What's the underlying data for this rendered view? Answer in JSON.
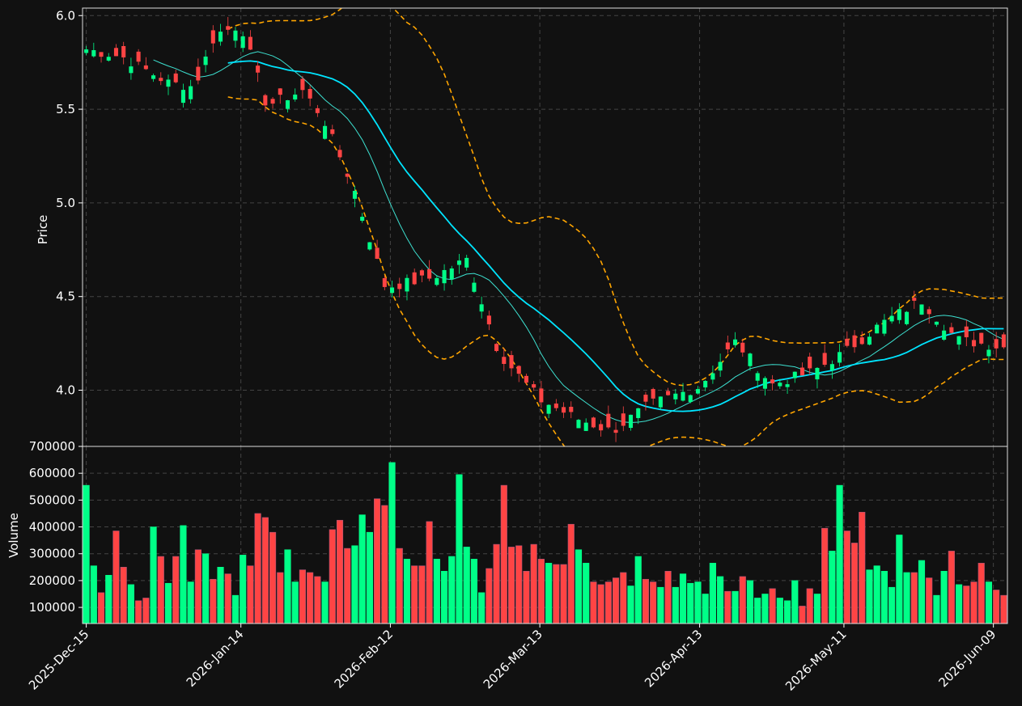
{
  "theme": {
    "background": "#111111",
    "up": "#00ff88",
    "down": "#ff4444",
    "sma_long": "#00e5ff",
    "sma_short": "#3de0d0",
    "bands": "#ffa500",
    "grid": "#444444"
  },
  "chart_data": [
    {
      "type": "candlestick",
      "ylabel": "Price",
      "ylim": [
        3.7,
        6.04
      ],
      "yticks": [
        "4.0",
        "4.5",
        "5.0",
        "5.5",
        "6.0"
      ],
      "grid": true,
      "overlays": [
        "moving average (thick, cyan)",
        "moving average (thin, teal)",
        "upper band (dashed, orange)",
        "lower band (dashed, orange)"
      ],
      "ohlc_anchors": [
        {
          "date": "2025-12-15",
          "close": 5.82
        },
        {
          "date": "2025-12-22",
          "close": 5.78
        },
        {
          "date": "2025-12-31",
          "close": 5.64
        },
        {
          "date": "2026-01-05",
          "close": 5.62
        },
        {
          "date": "2026-01-09",
          "close": 5.9
        },
        {
          "date": "2026-01-14",
          "close": 5.95
        },
        {
          "date": "2026-01-19",
          "close": 5.52
        },
        {
          "date": "2026-01-26",
          "close": 5.6
        },
        {
          "date": "2026-01-30",
          "close": 5.45
        },
        {
          "date": "2026-02-05",
          "close": 5.07
        },
        {
          "date": "2026-02-11",
          "close": 4.55
        },
        {
          "date": "2026-02-20",
          "close": 4.6
        },
        {
          "date": "2026-02-27",
          "close": 4.7
        },
        {
          "date": "2026-03-05",
          "close": 4.2
        },
        {
          "date": "2026-03-13",
          "close": 3.95
        },
        {
          "date": "2026-03-20",
          "close": 3.85
        },
        {
          "date": "2026-03-27",
          "close": 3.78
        },
        {
          "date": "2026-04-03",
          "close": 3.92
        },
        {
          "date": "2026-04-13",
          "close": 4.02
        },
        {
          "date": "2026-04-20",
          "close": 4.26
        },
        {
          "date": "2026-04-27",
          "close": 4.03
        },
        {
          "date": "2026-05-05",
          "close": 4.1
        },
        {
          "date": "2026-05-11",
          "close": 4.2
        },
        {
          "date": "2026-05-18",
          "close": 4.35
        },
        {
          "date": "2026-05-26",
          "close": 4.48
        },
        {
          "date": "2026-06-02",
          "close": 4.27
        },
        {
          "date": "2026-06-11",
          "close": 4.23
        }
      ]
    },
    {
      "type": "bar",
      "ylabel": "Volume",
      "ylim": [
        40000,
        700000
      ],
      "yticks": [
        "100000",
        "200000",
        "300000",
        "400000",
        "500000",
        "600000",
        "700000"
      ],
      "grid": true,
      "values": [
        555000,
        255000,
        155000,
        220000,
        385000,
        250000,
        185000,
        125000,
        135000,
        400000,
        290000,
        190000,
        290000,
        405000,
        195000,
        315000,
        300000,
        205000,
        250000,
        225000,
        145000,
        295000,
        255000,
        450000,
        435000,
        380000,
        230000,
        315000,
        195000,
        240000,
        230000,
        215000,
        195000,
        390000,
        425000,
        320000,
        330000,
        445000,
        380000,
        505000,
        480000,
        640000,
        320000,
        280000,
        255000,
        255000,
        420000,
        280000,
        235000,
        290000,
        595000,
        325000,
        280000,
        155000,
        245000,
        335000,
        555000,
        325000,
        330000,
        235000,
        335000,
        280000,
        265000,
        260000,
        260000,
        410000,
        315000,
        265000,
        195000,
        185000,
        195000,
        210000,
        230000,
        180000,
        290000,
        205000,
        195000,
        175000,
        235000,
        175000,
        225000,
        190000,
        195000,
        150000,
        265000,
        215000,
        160000,
        160000,
        215000,
        200000,
        135000,
        150000,
        170000,
        135000,
        125000,
        200000,
        105000,
        170000,
        150000,
        395000,
        310000,
        555000,
        385000,
        340000,
        455000,
        240000,
        255000,
        235000,
        175000,
        370000,
        230000,
        230000,
        275000,
        210000,
        145000,
        235000,
        310000,
        185000,
        180000,
        195000,
        265000,
        195000,
        165000,
        145000
      ],
      "up_flags": [
        1,
        1,
        0,
        1,
        0,
        0,
        1,
        0,
        0,
        1,
        0,
        1,
        0,
        1,
        1,
        0,
        1,
        0,
        1,
        0,
        1,
        1,
        0,
        0,
        0,
        0,
        0,
        1,
        1,
        0,
        0,
        0,
        1,
        0,
        0,
        0,
        1,
        1,
        1,
        0,
        0,
        1,
        0,
        1,
        0,
        0,
        0,
        1,
        1,
        1,
        1,
        1,
        1,
        1,
        0,
        0,
        0,
        0,
        0,
        0,
        0,
        0,
        1,
        0,
        0,
        0,
        1,
        1,
        0,
        0,
        0,
        0,
        0,
        1,
        1,
        0,
        0,
        1,
        0,
        1,
        1,
        1,
        1,
        1,
        1,
        1,
        0,
        1,
        0,
        1,
        1,
        1,
        0,
        1,
        1,
        1,
        0,
        0,
        1,
        0,
        1,
        1,
        0,
        0,
        0,
        1,
        1,
        1,
        1,
        1,
        1,
        0,
        1,
        0,
        1,
        1,
        0,
        1,
        0,
        0,
        0,
        1,
        0,
        0
      ]
    }
  ],
  "x_axis": {
    "tick_labels": [
      "2025-Dec-15",
      "2026-Jan-14",
      "2026-Feb-12",
      "2026-Mar-13",
      "2026-Apr-13",
      "2026-May-11",
      "2026-Jun-09"
    ]
  }
}
